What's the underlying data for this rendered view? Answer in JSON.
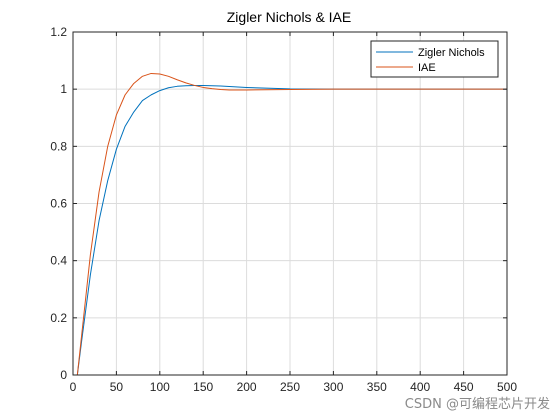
{
  "chart_data": {
    "type": "line",
    "title": "Zigler Nichols & IAE",
    "xlabel": "",
    "ylabel": "",
    "xlim": [
      0,
      500
    ],
    "ylim": [
      0,
      1.2
    ],
    "xticks": [
      0,
      50,
      100,
      150,
      200,
      250,
      300,
      350,
      400,
      450,
      500
    ],
    "yticks": [
      0,
      0.2,
      0.4,
      0.6,
      0.8,
      1,
      1.2
    ],
    "grid": true,
    "legend_position": "top-right",
    "series": [
      {
        "name": "Zigler Nichols",
        "color": "#0072BD",
        "x": [
          0,
          5,
          10,
          20,
          30,
          40,
          50,
          60,
          70,
          80,
          90,
          100,
          110,
          120,
          130,
          140,
          150,
          170,
          200,
          250,
          300,
          400,
          500
        ],
        "y": [
          0,
          0,
          0.12,
          0.35,
          0.54,
          0.68,
          0.79,
          0.87,
          0.92,
          0.96,
          0.98,
          0.995,
          1.005,
          1.01,
          1.012,
          1.013,
          1.013,
          1.011,
          1.006,
          1.001,
          1.0,
          1.0,
          1.0
        ]
      },
      {
        "name": "IAE",
        "color": "#D95319",
        "x": [
          0,
          5,
          10,
          20,
          30,
          40,
          50,
          60,
          70,
          80,
          90,
          100,
          110,
          120,
          130,
          140,
          150,
          160,
          170,
          180,
          200,
          250,
          300,
          400,
          500
        ],
        "y": [
          0,
          0,
          0.14,
          0.42,
          0.64,
          0.8,
          0.91,
          0.98,
          1.02,
          1.045,
          1.055,
          1.053,
          1.045,
          1.033,
          1.022,
          1.013,
          1.006,
          1.002,
          0.999,
          0.997,
          0.997,
          0.999,
          1.0,
          1.0,
          1.0
        ]
      }
    ]
  },
  "watermark": "CSDN @可编程芯片开发"
}
